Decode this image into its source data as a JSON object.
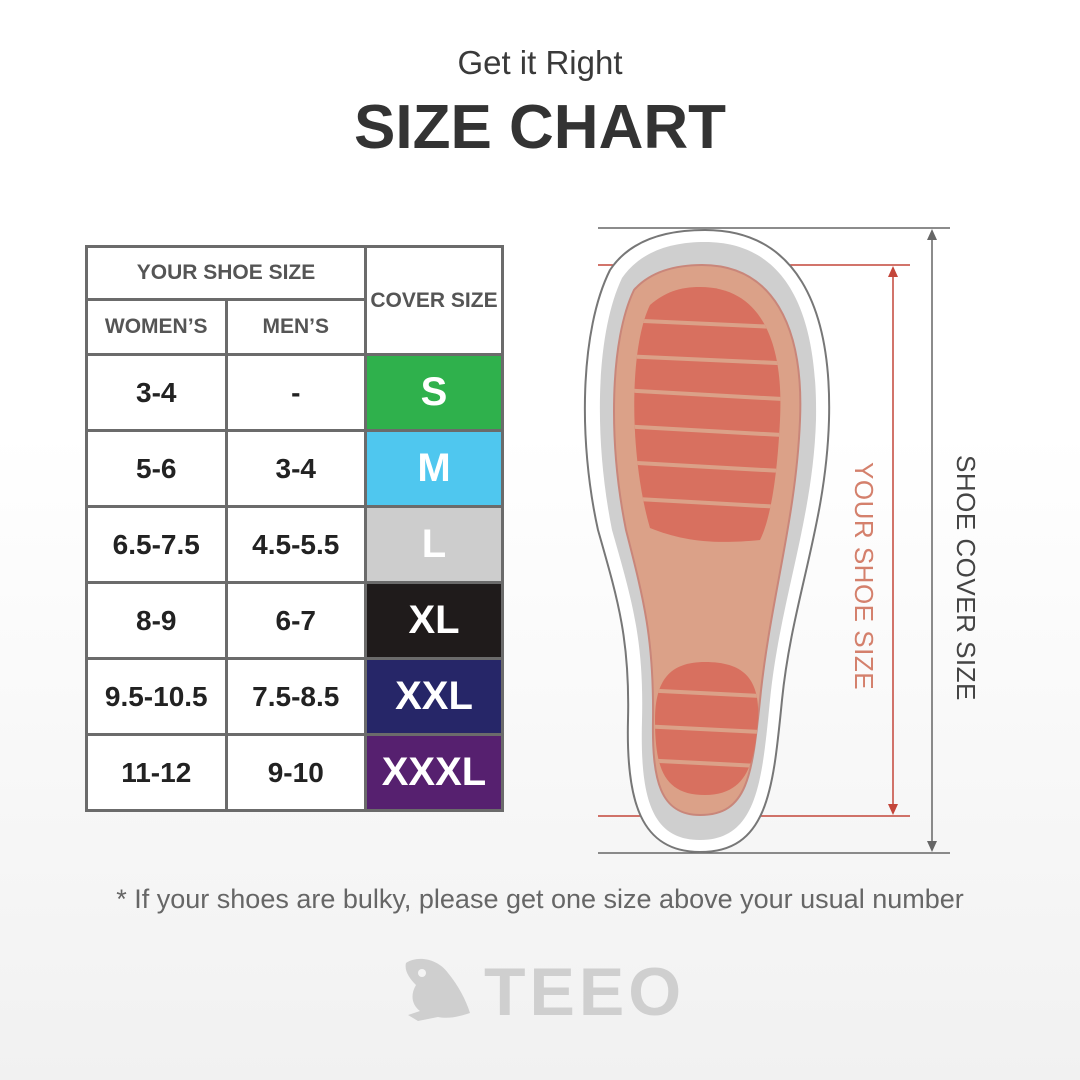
{
  "header": {
    "subtitle": "Get it Right",
    "title": "SIZE CHART"
  },
  "table": {
    "group_header": "YOUR SHOE SIZE",
    "col_women": "WOMEN’S",
    "col_men": "MEN’S",
    "col_cover": "COVER SIZE",
    "rows": [
      {
        "women": "3-4",
        "men": "-",
        "cover": "S",
        "color": "#2fb14c"
      },
      {
        "women": "5-6",
        "men": "3-4",
        "cover": "M",
        "color": "#4fc7ef"
      },
      {
        "women": "6.5-7.5",
        "men": "4.5-5.5",
        "cover": "L",
        "color": "#cdcdcd"
      },
      {
        "women": "8-9",
        "men": "6-7",
        "cover": "XL",
        "color": "#1f1b1b"
      },
      {
        "women": "9.5-10.5",
        "men": "7.5-8.5",
        "cover": "XXL",
        "color": "#262668"
      },
      {
        "women": "11-12",
        "men": "9-10",
        "cover": "XXXL",
        "color": "#56206f"
      }
    ]
  },
  "diagram": {
    "inner_label": "YOUR SHOE SIZE",
    "outer_label": "SHOE COVER SIZE"
  },
  "note": "* If your shoes are bulky, please get one size above your usual number",
  "logo": {
    "text": "TEEO",
    "icon": "frog-icon"
  }
}
